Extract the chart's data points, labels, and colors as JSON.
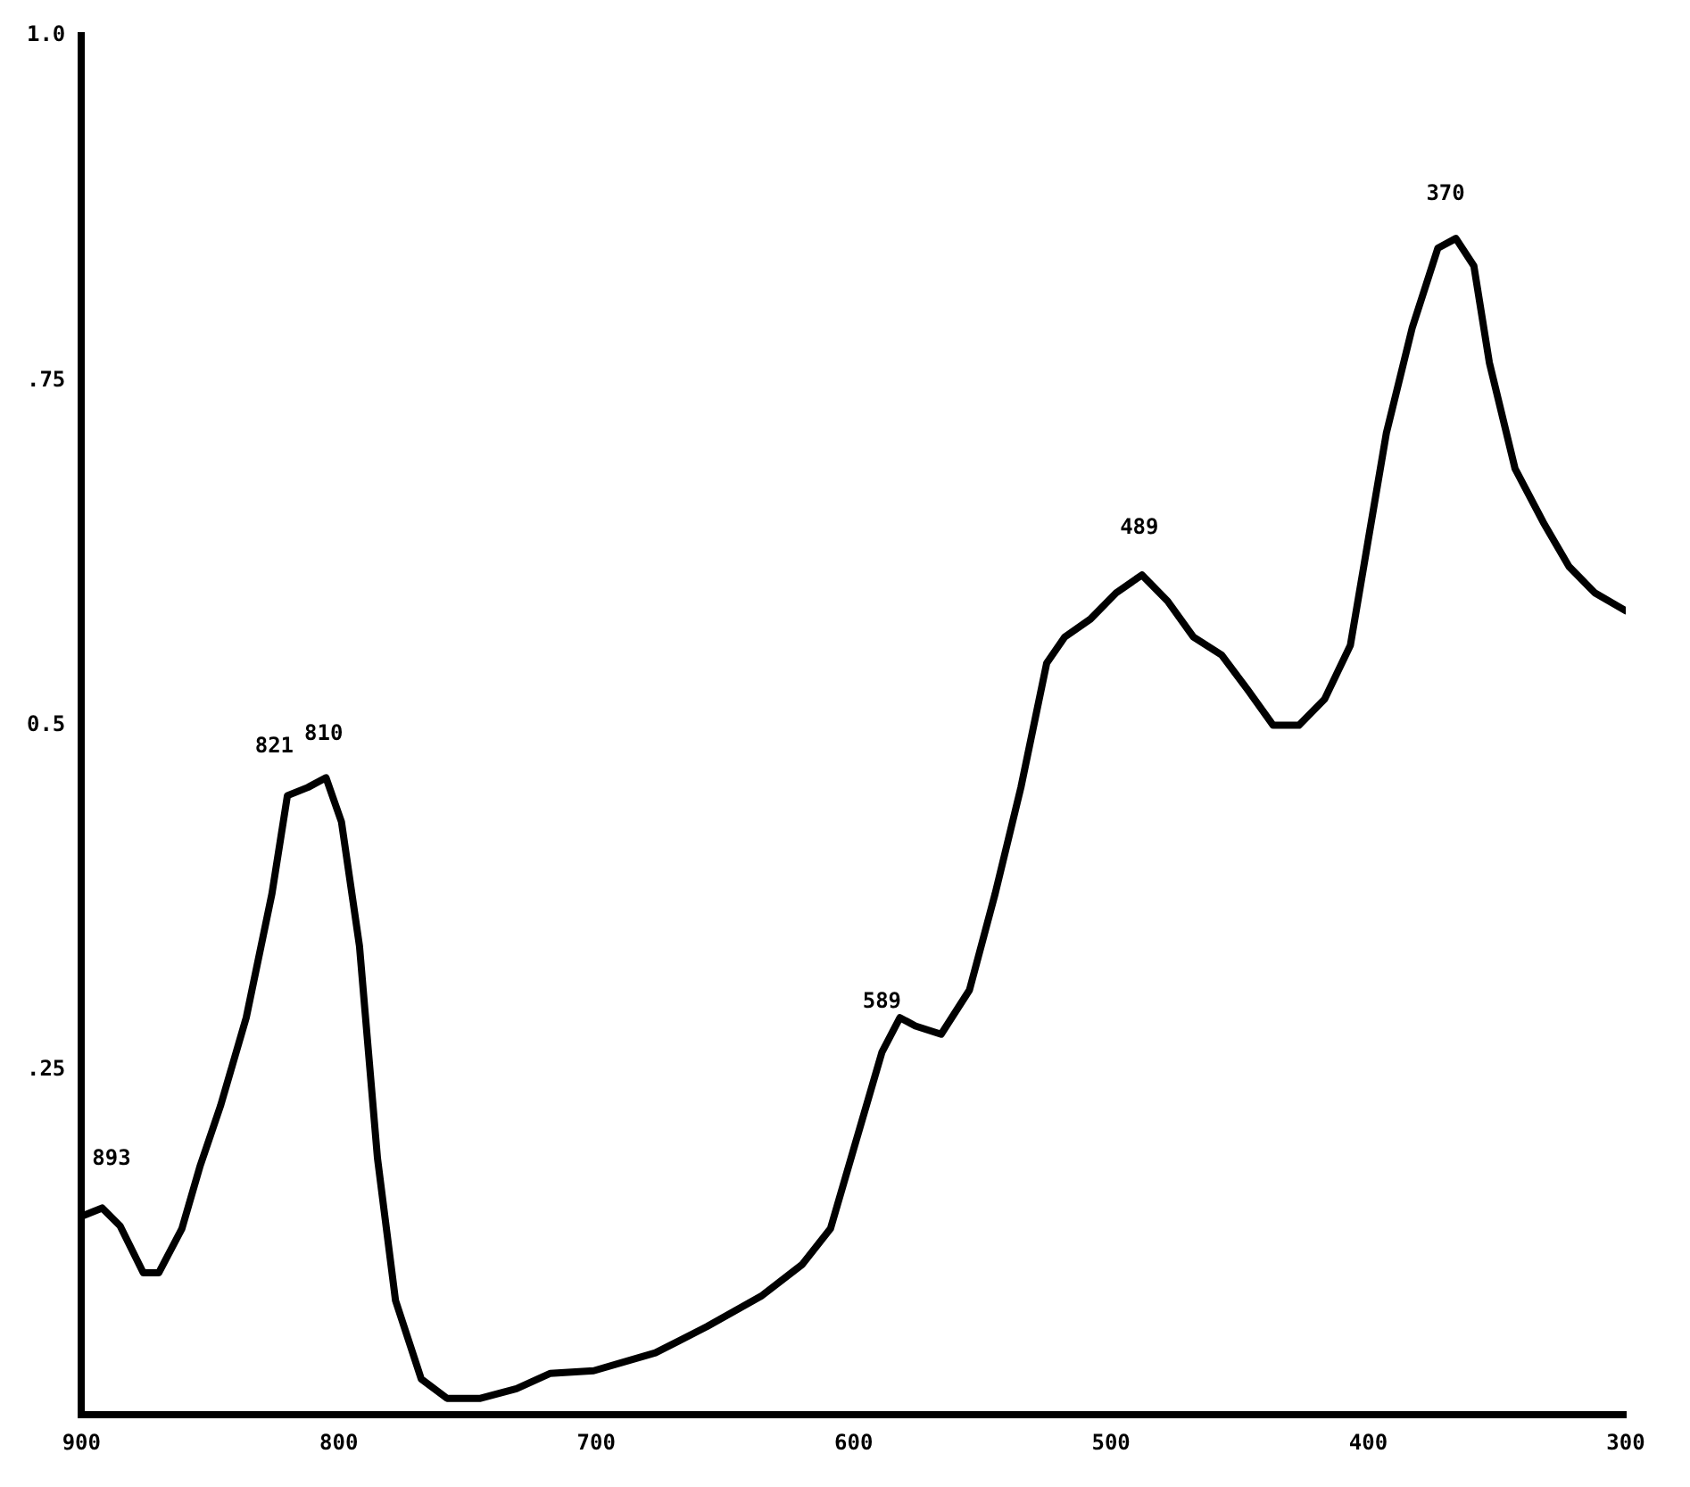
{
  "chart_data": {
    "type": "line",
    "x": [
      900,
      892,
      885,
      876,
      870,
      861,
      854,
      846,
      836,
      826,
      820,
      812,
      805,
      799,
      792,
      785,
      778,
      768,
      758,
      745,
      731,
      718,
      701,
      677,
      657,
      636,
      620,
      609,
      599,
      589,
      582,
      576,
      566,
      555,
      545,
      535,
      525,
      518,
      508,
      498,
      488,
      478,
      468,
      457,
      447,
      437,
      427,
      417,
      407,
      400,
      393,
      383,
      373,
      366,
      359,
      353,
      343,
      332,
      322,
      312,
      300
    ],
    "series": [
      {
        "color": "#000000",
        "values": [
          0.144,
          0.15,
          0.137,
          0.103,
          0.103,
          0.135,
          0.18,
          0.224,
          0.288,
          0.378,
          0.449,
          0.455,
          0.462,
          0.43,
          0.34,
          0.186,
          0.083,
          0.026,
          0.012,
          0.012,
          0.019,
          0.03,
          0.032,
          0.045,
          0.064,
          0.086,
          0.109,
          0.135,
          0.199,
          0.263,
          0.288,
          0.282,
          0.276,
          0.308,
          0.378,
          0.455,
          0.545,
          0.564,
          0.577,
          0.596,
          0.609,
          0.59,
          0.564,
          0.551,
          0.526,
          0.5,
          0.5,
          0.519,
          0.558,
          0.635,
          0.712,
          0.788,
          0.846,
          0.853,
          0.833,
          0.763,
          0.686,
          0.647,
          0.615,
          0.596,
          0.583
        ]
      }
    ],
    "xlim": [
      900,
      300
    ],
    "xticks": [
      900,
      800,
      700,
      600,
      500,
      400,
      300
    ],
    "ylim": [
      0,
      1
    ],
    "yticks": [
      {
        "value": 0.25,
        "label": ".25"
      },
      {
        "value": 0.5,
        "label": "0.5"
      },
      {
        "value": 0.75,
        "label": ".75"
      },
      {
        "value": 1,
        "label": "1.0"
      }
    ],
    "grid": false,
    "legend": false,
    "marker": "none",
    "line_style": "solid",
    "annotations": [
      {
        "text": "893",
        "x": 893,
        "y": 0.149
      },
      {
        "text": "821",
        "x": 821,
        "y": 0.448
      },
      {
        "text": "810",
        "x": 810,
        "y": 0.457
      },
      {
        "text": "589",
        "x": 589,
        "y": 0.263
      },
      {
        "text": "489",
        "x": 489,
        "y": 0.607
      },
      {
        "text": "370",
        "x": 370,
        "y": 0.849
      }
    ]
  }
}
